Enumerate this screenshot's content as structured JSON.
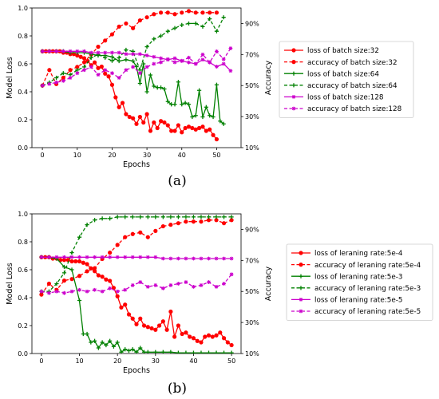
{
  "chart_data": [
    {
      "type": "line",
      "panel_label": "(a)",
      "xlabel": "Epochs",
      "ylabel": "Model Loss",
      "y2label": "Accuracy",
      "xlim": [
        -3,
        57
      ],
      "ylim": [
        0,
        1.0
      ],
      "y2lim": [
        10,
        100
      ],
      "xticks": [
        "0",
        "10",
        "20",
        "30",
        "40",
        "50"
      ],
      "yticks": [
        "0.0",
        "0.2",
        "0.4",
        "0.6",
        "0.8",
        "1.0"
      ],
      "y2ticks": [
        "10%",
        "30%",
        "50%",
        "70%",
        "90%"
      ],
      "legend_position": "right",
      "series": [
        {
          "name": "loss of batch size:32",
          "axis": "left",
          "color": "#ff0000",
          "style": "solid",
          "marker": "dot",
          "x": [
            0,
            1,
            2,
            3,
            4,
            5,
            6,
            7,
            8,
            9,
            10,
            11,
            12,
            13,
            14,
            15,
            16,
            17,
            18,
            19,
            20,
            21,
            22,
            23,
            24,
            25,
            26,
            27,
            28,
            29,
            30,
            31,
            32,
            33,
            34,
            35,
            36,
            37,
            38,
            39,
            40,
            41,
            42,
            43,
            44,
            45,
            46,
            47,
            48,
            49,
            50
          ],
          "y": [
            0.69,
            0.69,
            0.69,
            0.69,
            0.69,
            0.69,
            0.68,
            0.68,
            0.67,
            0.67,
            0.66,
            0.65,
            0.64,
            0.62,
            0.59,
            0.61,
            0.57,
            0.58,
            0.53,
            0.51,
            0.45,
            0.36,
            0.29,
            0.32,
            0.24,
            0.22,
            0.21,
            0.17,
            0.22,
            0.18,
            0.24,
            0.12,
            0.18,
            0.14,
            0.19,
            0.18,
            0.16,
            0.12,
            0.12,
            0.16,
            0.11,
            0.14,
            0.15,
            0.14,
            0.13,
            0.14,
            0.15,
            0.12,
            0.13,
            0.09,
            0.06
          ]
        },
        {
          "name": "accuracy of batch size:32",
          "axis": "right",
          "color": "#ff0000",
          "style": "dashed",
          "marker": "dot",
          "x": [
            0,
            2,
            4,
            6,
            8,
            10,
            12,
            14,
            16,
            18,
            20,
            22,
            24,
            26,
            28,
            30,
            32,
            34,
            36,
            38,
            40,
            42,
            44,
            46,
            48,
            50
          ],
          "y": [
            50,
            60,
            51,
            55,
            60,
            62,
            65,
            70,
            75,
            79,
            83,
            88,
            90,
            87,
            92,
            94,
            96,
            97,
            97,
            96,
            97,
            98,
            97,
            97,
            97,
            97
          ]
        },
        {
          "name": "loss of batch size:64",
          "axis": "left",
          "color": "#008000",
          "style": "solid",
          "marker": "plus",
          "x": [
            0,
            2,
            4,
            6,
            8,
            10,
            12,
            14,
            16,
            18,
            20,
            22,
            24,
            26,
            27,
            28,
            29,
            30,
            31,
            32,
            33,
            34,
            35,
            36,
            37,
            38,
            39,
            40,
            41,
            42,
            43,
            44,
            45,
            46,
            47,
            48,
            49,
            50,
            51,
            52
          ],
          "y": [
            0.69,
            0.69,
            0.69,
            0.69,
            0.68,
            0.68,
            0.68,
            0.67,
            0.66,
            0.66,
            0.65,
            0.62,
            0.63,
            0.62,
            0.58,
            0.46,
            0.6,
            0.4,
            0.52,
            0.44,
            0.43,
            0.43,
            0.42,
            0.33,
            0.31,
            0.31,
            0.47,
            0.31,
            0.32,
            0.31,
            0.22,
            0.23,
            0.41,
            0.22,
            0.29,
            0.23,
            0.22,
            0.45,
            0.19,
            0.17
          ]
        },
        {
          "name": "accuracy of batch size:64",
          "axis": "right",
          "color": "#008000",
          "style": "dashed",
          "marker": "plus",
          "x": [
            0,
            2,
            4,
            6,
            8,
            10,
            12,
            14,
            16,
            18,
            20,
            22,
            24,
            26,
            28,
            30,
            32,
            34,
            36,
            38,
            40,
            42,
            44,
            46,
            48,
            50,
            52
          ],
          "y": [
            50,
            52,
            55,
            58,
            57,
            60,
            62,
            68,
            70,
            68,
            66,
            68,
            73,
            72,
            60,
            75,
            80,
            82,
            85,
            87,
            89,
            90,
            90,
            88,
            93,
            85,
            94
          ]
        },
        {
          "name": "loss of batch size:128",
          "axis": "left",
          "color": "#cc00cc",
          "style": "solid",
          "marker": "star",
          "x": [
            0,
            2,
            4,
            6,
            8,
            10,
            12,
            14,
            16,
            18,
            20,
            22,
            24,
            26,
            28,
            30,
            32,
            34,
            36,
            38,
            40,
            42,
            44,
            46,
            48,
            50,
            52,
            54
          ],
          "y": [
            0.69,
            0.69,
            0.69,
            0.69,
            0.69,
            0.69,
            0.69,
            0.68,
            0.68,
            0.68,
            0.68,
            0.68,
            0.67,
            0.67,
            0.67,
            0.66,
            0.65,
            0.64,
            0.63,
            0.64,
            0.62,
            0.61,
            0.6,
            0.63,
            0.61,
            0.58,
            0.6,
            0.55
          ]
        },
        {
          "name": "accuracy of batch size:128",
          "axis": "right",
          "color": "#cc00cc",
          "style": "dashed",
          "marker": "star",
          "x": [
            0,
            2,
            4,
            6,
            8,
            10,
            12,
            14,
            16,
            18,
            20,
            22,
            24,
            26,
            28,
            30,
            32,
            34,
            36,
            38,
            40,
            42,
            44,
            46,
            48,
            50,
            52,
            54
          ],
          "y": [
            50,
            51,
            52,
            53,
            55,
            58,
            60,
            62,
            57,
            60,
            58,
            55,
            60,
            62,
            58,
            62,
            64,
            65,
            67,
            65,
            66,
            68,
            64,
            70,
            65,
            72,
            67,
            74
          ]
        }
      ]
    },
    {
      "type": "line",
      "panel_label": "(b)",
      "xlabel": "Epochs",
      "ylabel": "Model Loss",
      "y2label": "Accuracy",
      "xlim": [
        -2.5,
        52.5
      ],
      "ylim": [
        0,
        1.0
      ],
      "y2lim": [
        10,
        100
      ],
      "xticks": [
        "0",
        "10",
        "20",
        "30",
        "40",
        "50"
      ],
      "yticks": [
        "0.0",
        "0.2",
        "0.4",
        "0.6",
        "0.8",
        "1.0"
      ],
      "y2ticks": [
        "10%",
        "30%",
        "50%",
        "70%",
        "90%"
      ],
      "legend_position": "right",
      "series": [
        {
          "name": "loss of leraning rate:5e-4",
          "axis": "left",
          "color": "#ff0000",
          "style": "solid",
          "marker": "dot",
          "x": [
            0,
            1,
            2,
            3,
            4,
            5,
            6,
            7,
            8,
            9,
            10,
            11,
            12,
            13,
            14,
            15,
            16,
            17,
            18,
            19,
            20,
            21,
            22,
            23,
            24,
            25,
            26,
            27,
            28,
            29,
            30,
            31,
            32,
            33,
            34,
            35,
            36,
            37,
            38,
            39,
            40,
            41,
            42,
            43,
            44,
            45,
            46,
            47,
            48,
            49,
            50
          ],
          "y": [
            0.69,
            0.69,
            0.69,
            0.68,
            0.68,
            0.67,
            0.67,
            0.67,
            0.66,
            0.66,
            0.66,
            0.65,
            0.64,
            0.61,
            0.59,
            0.56,
            0.55,
            0.53,
            0.52,
            0.47,
            0.41,
            0.33,
            0.35,
            0.28,
            0.25,
            0.21,
            0.25,
            0.2,
            0.19,
            0.18,
            0.17,
            0.2,
            0.23,
            0.17,
            0.3,
            0.12,
            0.2,
            0.14,
            0.15,
            0.12,
            0.11,
            0.09,
            0.08,
            0.12,
            0.13,
            0.12,
            0.13,
            0.15,
            0.11,
            0.08,
            0.06
          ]
        },
        {
          "name": "accuracy of leraning rate:5e-4",
          "axis": "right",
          "color": "#ff0000",
          "style": "dashed",
          "marker": "dot",
          "x": [
            0,
            2,
            4,
            6,
            8,
            10,
            12,
            14,
            16,
            18,
            20,
            22,
            24,
            26,
            28,
            30,
            32,
            34,
            36,
            38,
            40,
            42,
            44,
            46,
            48,
            50
          ],
          "y": [
            48,
            55,
            51,
            57,
            58,
            60,
            63,
            65,
            71,
            75,
            80,
            85,
            87,
            88,
            85,
            89,
            92,
            93,
            94,
            95,
            95,
            95,
            96,
            96,
            94,
            96
          ]
        },
        {
          "name": "loss of leraning rate:5e-3",
          "axis": "left",
          "color": "#008000",
          "style": "solid",
          "marker": "plus",
          "x": [
            0,
            2,
            4,
            6,
            8,
            10,
            11,
            12,
            13,
            14,
            15,
            16,
            17,
            18,
            19,
            20,
            21,
            22,
            23,
            24,
            25,
            26,
            27,
            28,
            30,
            32,
            34,
            36,
            38,
            40,
            42,
            44,
            46,
            48,
            50
          ],
          "y": [
            0.69,
            0.69,
            0.68,
            0.62,
            0.6,
            0.38,
            0.14,
            0.14,
            0.08,
            0.09,
            0.04,
            0.08,
            0.06,
            0.09,
            0.05,
            0.08,
            0.01,
            0.03,
            0.02,
            0.03,
            0.01,
            0.04,
            0.01,
            0.01,
            0.01,
            0.01,
            0.01,
            0.005,
            0.005,
            0.005,
            0.005,
            0.005,
            0.005,
            0.005,
            0.005
          ]
        },
        {
          "name": "accuracy of leraning rate:5e-3",
          "axis": "right",
          "color": "#008000",
          "style": "dashed",
          "marker": "plus",
          "x": [
            0,
            2,
            4,
            6,
            8,
            10,
            12,
            14,
            16,
            18,
            20,
            22,
            24,
            26,
            28,
            30,
            32,
            34,
            36,
            38,
            40,
            42,
            44,
            46,
            48,
            50
          ],
          "y": [
            50,
            50,
            55,
            62,
            75,
            85,
            93,
            96,
            97,
            97,
            98,
            98,
            98,
            98,
            98,
            98,
            98,
            98,
            98,
            98,
            98,
            98,
            98,
            98,
            98,
            98
          ]
        },
        {
          "name": "loss of leraning rate:5e-5",
          "axis": "left",
          "color": "#cc00cc",
          "style": "solid",
          "marker": "star",
          "x": [
            0,
            2,
            4,
            6,
            8,
            10,
            12,
            14,
            16,
            18,
            20,
            22,
            24,
            26,
            28,
            30,
            32,
            34,
            36,
            38,
            40,
            42,
            44,
            46,
            48,
            50
          ],
          "y": [
            0.69,
            0.69,
            0.69,
            0.69,
            0.69,
            0.69,
            0.69,
            0.69,
            0.69,
            0.69,
            0.69,
            0.69,
            0.69,
            0.69,
            0.69,
            0.69,
            0.68,
            0.68,
            0.68,
            0.68,
            0.68,
            0.68,
            0.68,
            0.68,
            0.68,
            0.68
          ]
        },
        {
          "name": "accuracy of leraning rate:5e-5",
          "axis": "right",
          "color": "#cc00cc",
          "style": "dashed",
          "marker": "star",
          "x": [
            0,
            2,
            4,
            6,
            8,
            10,
            12,
            14,
            16,
            18,
            20,
            22,
            24,
            26,
            28,
            30,
            32,
            34,
            36,
            38,
            40,
            42,
            44,
            46,
            48,
            50
          ],
          "y": [
            50,
            49,
            50,
            49,
            50,
            51,
            50,
            51,
            50,
            52,
            50,
            51,
            54,
            56,
            53,
            54,
            52,
            54,
            55,
            56,
            53,
            54,
            56,
            53,
            55,
            61
          ]
        }
      ]
    }
  ]
}
